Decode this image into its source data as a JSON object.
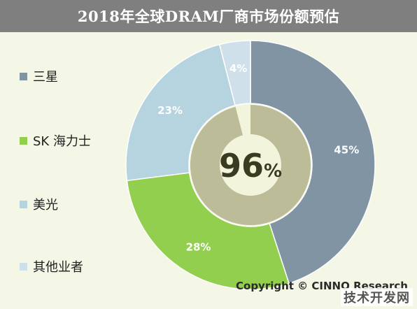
{
  "title": "2018年全球DRAM厂商市场份额预估",
  "center_value": "96",
  "center_unit": "%",
  "copyright": "Copyright © CINNO Research",
  "watermark": "技术开发网",
  "colors": {
    "title_bar": "#7f7f7f",
    "background": "#f4f6e6",
    "samsung": "#8094a3",
    "skhynix": "#92cf4f",
    "micron": "#b6d3e0",
    "others": "#cfe0ea",
    "inner_main": "#bcbc98",
    "inner_rest": "#f3f4dc"
  },
  "chart_data": {
    "type": "pie",
    "title": "2018年全球DRAM厂商市场份额预估",
    "categories": [
      "三星",
      "SK 海力士",
      "美光",
      "其他业者"
    ],
    "values": [
      45,
      28,
      23,
      4
    ],
    "labels": [
      "45%",
      "28%",
      "23%",
      "4%"
    ],
    "legend_position": "left",
    "inner_ring": {
      "values": [
        96,
        4
      ],
      "center_label": "96%"
    }
  }
}
